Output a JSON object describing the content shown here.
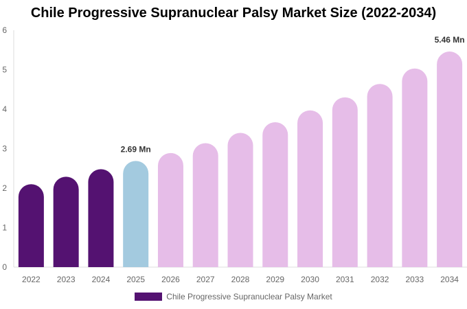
{
  "chart_data": {
    "type": "bar",
    "title": "Chile Progressive Supranuclear Palsy Market Size (2022-2034)",
    "categories": [
      "2022",
      "2023",
      "2024",
      "2025",
      "2026",
      "2027",
      "2028",
      "2029",
      "2030",
      "2031",
      "2032",
      "2033",
      "2034"
    ],
    "series": [
      {
        "name": "Chile Progressive Supranuclear Palsy Market",
        "values": [
          2.1,
          2.29,
          2.48,
          2.69,
          2.89,
          3.14,
          3.4,
          3.67,
          3.97,
          4.3,
          4.64,
          5.03,
          5.46
        ]
      }
    ],
    "data_labels": [
      {
        "index": 3,
        "text": "2.69 Mn"
      },
      {
        "index": 12,
        "text": "5.46 Mn"
      }
    ],
    "ylim": [
      0,
      6
    ],
    "yticks": [
      "0",
      "1",
      "2",
      "3",
      "4",
      "5",
      "6"
    ],
    "xlabel": "",
    "ylabel": "",
    "grid": false,
    "legend": "bottom",
    "colors": {
      "historical": "#541271",
      "base_year": "#a3cadf",
      "forecast": "#e6bde8"
    }
  }
}
